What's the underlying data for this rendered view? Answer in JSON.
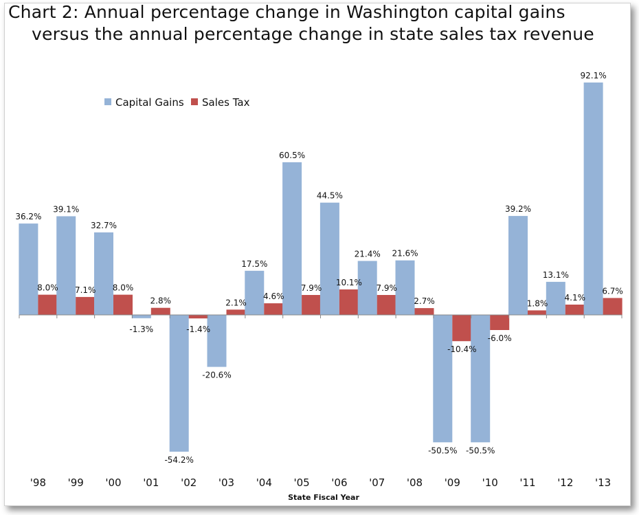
{
  "chart_data": {
    "type": "bar",
    "title": "Chart 2: Annual percentage change in Washington capital gains",
    "subtitle": "versus the annual percentage change in state sales tax revenue",
    "xlabel": "State Fiscal Year",
    "ylabel": "",
    "categories": [
      "'98",
      "'99",
      "'00",
      "'01",
      "'02",
      "'03",
      "'04",
      "'05",
      "'06",
      "'07",
      "'08",
      "'09",
      "'10",
      "'11",
      "'12",
      "'13"
    ],
    "series": [
      {
        "name": "Capital Gains",
        "color": "#95b3d7",
        "values": [
          36.2,
          39.1,
          32.7,
          -1.3,
          -54.2,
          -20.6,
          17.5,
          60.5,
          44.5,
          21.4,
          21.6,
          -50.5,
          -50.5,
          39.2,
          13.1,
          92.1
        ],
        "labels": [
          "36.2%",
          "39.1%",
          "32.7%",
          "-1.3%",
          "-54.2%",
          "-20.6%",
          "17.5%",
          "60.5%",
          "44.5%",
          "21.4%",
          "21.6%",
          "-50.5%",
          "-50.5%",
          "39.2%",
          "13.1%",
          "92.1%"
        ]
      },
      {
        "name": "Sales Tax",
        "color": "#c0504d",
        "values": [
          8.0,
          7.1,
          8.0,
          2.8,
          -1.4,
          2.1,
          4.6,
          7.9,
          10.1,
          7.9,
          2.7,
          -10.4,
          -6.0,
          1.8,
          4.1,
          6.7
        ],
        "labels": [
          "8.0%",
          "7.1%",
          "8.0%",
          "2.8%",
          "-1.4%",
          "2.1%",
          "4.6%",
          "7.9%",
          "10.1%",
          "7.9%",
          "2.7%",
          "-10.4%",
          "-6.0%",
          "1.8%",
          "4.1%",
          "6.7%"
        ]
      }
    ],
    "ylim": [
      -60,
      100
    ],
    "grid": false,
    "legend_position": "top-left"
  }
}
